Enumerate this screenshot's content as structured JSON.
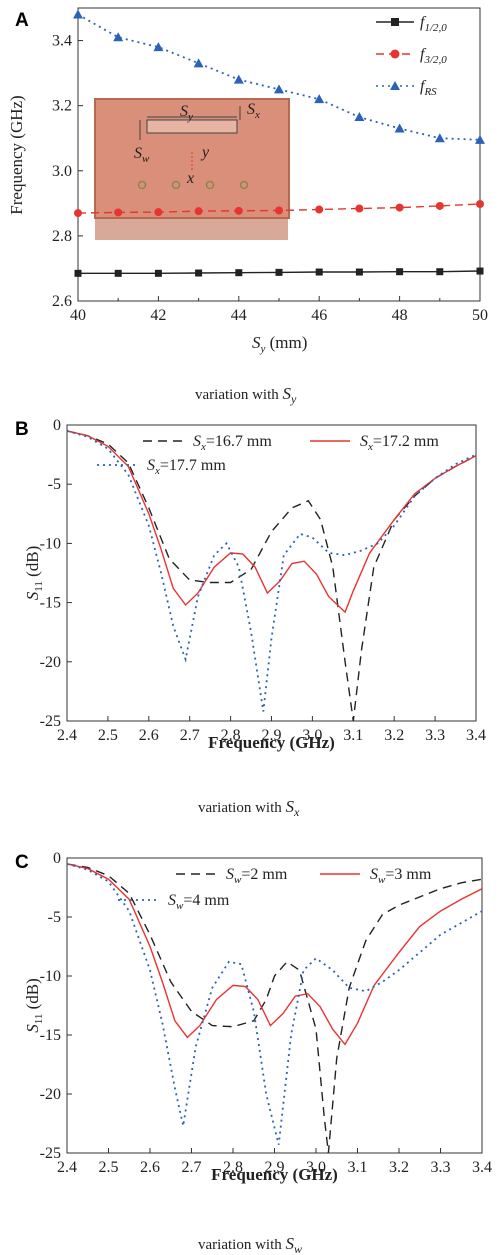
{
  "colors": {
    "black": "#222222",
    "red": "#e8342f",
    "blue": "#2a62b8",
    "inset_fill": "#d98f79",
    "inset_border": "#b86a50"
  },
  "chart_data": [
    {
      "type": "line",
      "panel_label": "A",
      "xlabel": "S_y (mm)",
      "ylabel": "Frequency (GHz)",
      "caption": "variation with S_y",
      "xlim": [
        40,
        50
      ],
      "ylim": [
        2.6,
        3.5
      ],
      "xticks": [
        "40",
        "42",
        "44",
        "46",
        "48",
        "50"
      ],
      "yticks": [
        "2.6",
        "2.8",
        "3.0",
        "3.2",
        "3.4"
      ],
      "x": [
        40,
        41,
        42,
        43,
        44,
        45,
        46,
        47,
        48,
        49,
        50
      ],
      "series": [
        {
          "name": "f_1/2,0",
          "name_main": "f",
          "name_sub": "1/2,0",
          "style": "solid-square",
          "color": "#222222",
          "values": [
            2.685,
            2.685,
            2.685,
            2.686,
            2.687,
            2.688,
            2.689,
            2.689,
            2.69,
            2.69,
            2.692
          ]
        },
        {
          "name": "f_3/2,0",
          "name_main": "f",
          "name_sub": "3/2,0",
          "style": "dash-circle",
          "color": "#e8342f",
          "values": [
            2.87,
            2.872,
            2.873,
            2.876,
            2.877,
            2.878,
            2.881,
            2.884,
            2.887,
            2.892,
            2.898
          ]
        },
        {
          "name": "f_RS",
          "name_main": "f",
          "name_sub": "RS",
          "style": "dot-triangle",
          "color": "#2a62b8",
          "values": [
            3.48,
            3.41,
            3.38,
            3.33,
            3.28,
            3.25,
            3.22,
            3.165,
            3.13,
            3.1,
            3.095
          ]
        }
      ],
      "inset": {
        "labels": [
          "S_y",
          "S_x",
          "S_w",
          "y",
          "x"
        ]
      }
    },
    {
      "type": "line",
      "panel_label": "B",
      "xlabel": "Frequency (GHz)",
      "ylabel": "S11 (dB)",
      "caption": "variation with S_x",
      "xlim": [
        2.4,
        3.4
      ],
      "ylim": [
        -25,
        0
      ],
      "xticks": [
        "2.4",
        "2.5",
        "2.6",
        "2.7",
        "2.8",
        "2.9",
        "3.0",
        "3.1",
        "3.2",
        "3.3",
        "3.4"
      ],
      "yticks": [
        "0",
        "-5",
        "-10",
        "-15",
        "-20",
        "-25"
      ],
      "series": [
        {
          "name": "S_x=16.7 mm",
          "name_main": "S",
          "name_sub": "x",
          "name_rest": "=16.7 mm",
          "style": "dash",
          "color": "#222222",
          "x": [
            2.4,
            2.45,
            2.5,
            2.55,
            2.6,
            2.65,
            2.7,
            2.75,
            2.8,
            2.85,
            2.9,
            2.95,
            2.99,
            3.02,
            3.05,
            3.08,
            3.1,
            3.12,
            3.15,
            3.2,
            3.25,
            3.3,
            3.35,
            3.4
          ],
          "values": [
            -0.5,
            -0.9,
            -1.6,
            -3.2,
            -7.0,
            -11.3,
            -13.1,
            -13.3,
            -13.3,
            -12.2,
            -9.0,
            -7.0,
            -6.4,
            -8.0,
            -12.0,
            -20.0,
            -25.0,
            -19.0,
            -12.0,
            -8.0,
            -6.0,
            -4.5,
            -3.5,
            -2.6
          ]
        },
        {
          "name": "S_x=17.2 mm",
          "name_main": "S",
          "name_sub": "x",
          "name_rest": "=17.2 mm",
          "style": "solid",
          "color": "#e8342f",
          "x": [
            2.4,
            2.45,
            2.5,
            2.55,
            2.6,
            2.63,
            2.66,
            2.69,
            2.72,
            2.76,
            2.8,
            2.83,
            2.86,
            2.89,
            2.92,
            2.95,
            2.98,
            3.01,
            3.04,
            3.08,
            3.1,
            3.14,
            3.2,
            3.25,
            3.3,
            3.35,
            3.4
          ],
          "values": [
            -0.5,
            -0.9,
            -1.8,
            -3.5,
            -7.5,
            -10.5,
            -13.8,
            -15.2,
            -14.2,
            -12.0,
            -10.8,
            -10.9,
            -12.0,
            -14.2,
            -13.2,
            -11.7,
            -11.5,
            -12.6,
            -14.5,
            -15.8,
            -14.0,
            -10.8,
            -8.0,
            -5.8,
            -4.5,
            -3.5,
            -2.6
          ]
        },
        {
          "name": "S_x=17.7 mm",
          "name_main": "S",
          "name_sub": "x",
          "name_rest": "=17.7 mm",
          "style": "dot",
          "color": "#2a62b8",
          "x": [
            2.4,
            2.45,
            2.5,
            2.55,
            2.6,
            2.63,
            2.66,
            2.69,
            2.72,
            2.76,
            2.79,
            2.82,
            2.85,
            2.88,
            2.9,
            2.93,
            2.97,
            3.0,
            3.04,
            3.08,
            3.12,
            3.16,
            3.2,
            3.25,
            3.3,
            3.35,
            3.4
          ],
          "values": [
            -0.5,
            -1.0,
            -2.0,
            -4.2,
            -8.5,
            -12.5,
            -17.0,
            -19.8,
            -14.5,
            -11.0,
            -10.0,
            -12.0,
            -17.5,
            -24.2,
            -18.0,
            -11.0,
            -9.2,
            -9.5,
            -10.8,
            -11.0,
            -10.6,
            -10.0,
            -8.5,
            -6.0,
            -4.5,
            -3.3,
            -2.5
          ]
        }
      ]
    },
    {
      "type": "line",
      "panel_label": "C",
      "xlabel": "Frequency (GHz)",
      "ylabel": "S11 (dB)",
      "caption": "variation with S_w",
      "xlim": [
        2.4,
        3.4
      ],
      "ylim": [
        -25,
        0
      ],
      "xticks": [
        "2.4",
        "2.5",
        "2.6",
        "2.7",
        "2.8",
        "2.9",
        "3.0",
        "3.1",
        "3.2",
        "3.3",
        "3.4"
      ],
      "yticks": [
        "0",
        "-5",
        "-10",
        "-15",
        "-20",
        "-25"
      ],
      "series": [
        {
          "name": "S_w=2 mm",
          "name_main": "S",
          "name_sub": "w",
          "name_rest": "=2 mm",
          "style": "dash",
          "color": "#222222",
          "x": [
            2.4,
            2.45,
            2.5,
            2.55,
            2.6,
            2.65,
            2.7,
            2.75,
            2.8,
            2.85,
            2.88,
            2.9,
            2.93,
            2.96,
            3.0,
            3.02,
            3.03,
            3.05,
            3.08,
            3.12,
            3.16,
            3.2,
            3.25,
            3.3,
            3.35,
            3.4
          ],
          "values": [
            -0.5,
            -0.8,
            -1.5,
            -3.0,
            -6.5,
            -10.5,
            -13.0,
            -14.2,
            -14.3,
            -13.8,
            -12.0,
            -10.0,
            -8.8,
            -9.5,
            -14.5,
            -22.0,
            -25.0,
            -17.0,
            -11.0,
            -7.0,
            -4.8,
            -4.0,
            -3.3,
            -2.6,
            -2.1,
            -1.8
          ]
        },
        {
          "name": "S_w=3 mm",
          "name_main": "S",
          "name_sub": "w",
          "name_rest": "=3 mm",
          "style": "solid",
          "color": "#e8342f",
          "x": [
            2.4,
            2.45,
            2.5,
            2.55,
            2.6,
            2.63,
            2.66,
            2.69,
            2.72,
            2.76,
            2.8,
            2.83,
            2.86,
            2.89,
            2.92,
            2.95,
            2.98,
            3.01,
            3.04,
            3.07,
            3.1,
            3.14,
            3.2,
            3.25,
            3.3,
            3.35,
            3.4
          ],
          "values": [
            -0.5,
            -0.9,
            -1.8,
            -3.5,
            -7.5,
            -10.5,
            -13.8,
            -15.2,
            -14.2,
            -12.0,
            -10.8,
            -10.9,
            -12.0,
            -14.2,
            -13.2,
            -11.7,
            -11.5,
            -12.6,
            -14.5,
            -15.8,
            -14.0,
            -10.8,
            -8.0,
            -5.8,
            -4.5,
            -3.5,
            -2.6
          ]
        },
        {
          "name": "S_w=4 mm",
          "name_main": "S",
          "name_sub": "w",
          "name_rest": "=4 mm",
          "style": "dot",
          "color": "#2a62b8",
          "x": [
            2.4,
            2.45,
            2.5,
            2.55,
            2.6,
            2.63,
            2.66,
            2.68,
            2.71,
            2.75,
            2.79,
            2.82,
            2.85,
            2.88,
            2.91,
            2.94,
            2.97,
            3.0,
            3.04,
            3.08,
            3.12,
            3.16,
            3.2,
            3.25,
            3.3,
            3.35,
            3.4
          ],
          "values": [
            -0.5,
            -1.0,
            -2.0,
            -4.5,
            -9.5,
            -14.0,
            -19.5,
            -22.7,
            -16.0,
            -11.0,
            -8.8,
            -9.0,
            -13.0,
            -20.0,
            -24.3,
            -15.0,
            -9.5,
            -8.5,
            -9.5,
            -11.0,
            -11.3,
            -10.5,
            -9.5,
            -8.0,
            -6.5,
            -5.5,
            -4.5
          ]
        }
      ]
    }
  ]
}
